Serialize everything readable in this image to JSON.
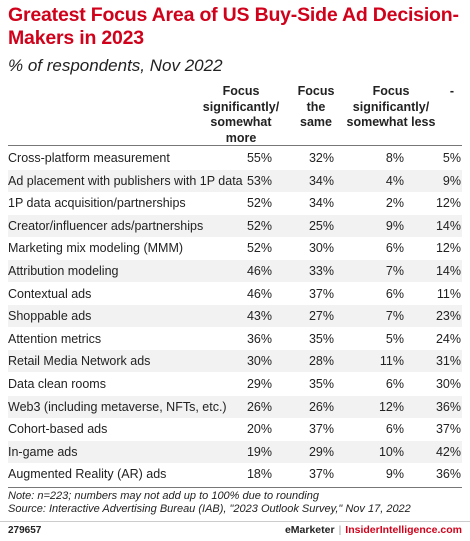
{
  "title": "Greatest Focus Area of US Buy-Side Ad Decision-Makers in 2023",
  "subtitle": "% of respondents, Nov 2022",
  "headers": [
    "Focus significantly/ somewhat more",
    "Focus the same",
    "Focus significantly/ somewhat less",
    "-"
  ],
  "note": "Note: n=223; numbers may not add up to 100% due to rounding",
  "source": "Source: Interactive Advertising Bureau (IAB), \"2023 Outlook Survey,\" Nov 17, 2022",
  "footer": {
    "id": "279657",
    "brand1": "eMarketer",
    "separator": "|",
    "brand2": "InsiderIntelligence.com"
  },
  "chart_data": {
    "type": "table",
    "title": "Greatest Focus Area of US Buy-Side Ad Decision-Makers in 2023",
    "subtitle": "% of respondents, Nov 2022",
    "columns": [
      "Focus significantly/ somewhat more",
      "Focus the same",
      "Focus significantly/ somewhat less",
      "-"
    ],
    "rows": [
      {
        "label": "Cross-platform measurement",
        "values": [
          "55%",
          "32%",
          "8%",
          "5%"
        ]
      },
      {
        "label": "Ad placement with publishers with 1P data",
        "values": [
          "53%",
          "34%",
          "4%",
          "9%"
        ]
      },
      {
        "label": "1P data acquisition/partnerships",
        "values": [
          "52%",
          "34%",
          "2%",
          "12%"
        ]
      },
      {
        "label": "Creator/influencer ads/partnerships",
        "values": [
          "52%",
          "25%",
          "9%",
          "14%"
        ]
      },
      {
        "label": "Marketing mix modeling (MMM)",
        "values": [
          "52%",
          "30%",
          "6%",
          "12%"
        ]
      },
      {
        "label": "Attribution modeling",
        "values": [
          "46%",
          "33%",
          "7%",
          "14%"
        ]
      },
      {
        "label": "Contextual ads",
        "values": [
          "46%",
          "37%",
          "6%",
          "11%"
        ]
      },
      {
        "label": "Shoppable ads",
        "values": [
          "43%",
          "27%",
          "7%",
          "23%"
        ]
      },
      {
        "label": "Attention metrics",
        "values": [
          "36%",
          "35%",
          "5%",
          "24%"
        ]
      },
      {
        "label": "Retail Media Network ads",
        "values": [
          "30%",
          "28%",
          "11%",
          "31%"
        ]
      },
      {
        "label": "Data clean rooms",
        "values": [
          "29%",
          "35%",
          "6%",
          "30%"
        ]
      },
      {
        "label": "Web3 (including metaverse, NFTs, etc.)",
        "values": [
          "26%",
          "26%",
          "12%",
          "36%"
        ]
      },
      {
        "label": "Cohort-based ads",
        "values": [
          "20%",
          "37%",
          "6%",
          "37%"
        ]
      },
      {
        "label": "In-game ads",
        "values": [
          "19%",
          "29%",
          "10%",
          "42%"
        ]
      },
      {
        "label": "Augmented Reality (AR) ads",
        "values": [
          "18%",
          "37%",
          "9%",
          "36%"
        ]
      }
    ]
  }
}
